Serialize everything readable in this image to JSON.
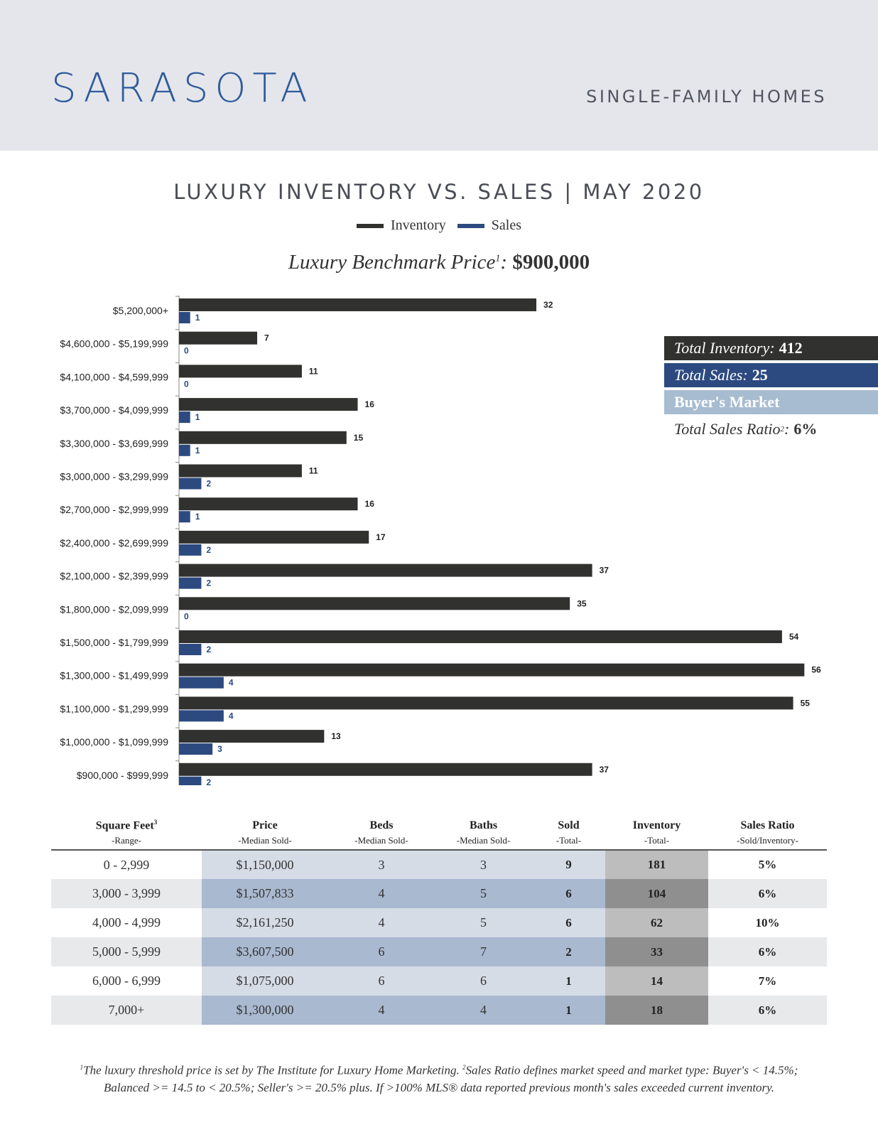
{
  "header": {
    "city": "SARASOTA",
    "property_type": "SINGLE-FAMILY HOMES"
  },
  "legend": {
    "inventory": "Inventory",
    "sales": "Sales"
  },
  "benchmark": {
    "label": "Luxury Benchmark Price",
    "sup": "1",
    "separator": ":",
    "value": "$900,000"
  },
  "summary": {
    "total_inventory_label": "Total Inventory:",
    "total_inventory_value": "412",
    "total_sales_label": "Total Sales:",
    "total_sales_value": "25",
    "market_type": "Buyer's Market",
    "ratio_label": "Total Sales Ratio",
    "ratio_sup": "2",
    "ratio_colon": ":",
    "ratio_value": "6%"
  },
  "colors": {
    "inventory": "#31312f",
    "sales": "#2c4a80",
    "market": "#a7bcd0"
  },
  "chart_data": {
    "type": "bar",
    "orientation": "horizontal",
    "title": "LUXURY INVENTORY VS. SALES | MAY 2020",
    "categories": [
      "$5,200,000+",
      "$4,600,000 - $5,199,999",
      "$4,100,000 - $4,599,999",
      "$3,700,000 - $4,099,999",
      "$3,300,000 - $3,699,999",
      "$3,000,000 - $3,299,999",
      "$2,700,000 - $2,999,999",
      "$2,400,000 - $2,699,999",
      "$2,100,000 - $2,399,999",
      "$1,800,000 - $2,099,999",
      "$1,500,000 - $1,799,999",
      "$1,300,000 - $1,499,999",
      "$1,100,000 - $1,299,999",
      "$1,000,000 - $1,099,999",
      "$900,000 - $999,999"
    ],
    "series": [
      {
        "name": "Inventory",
        "values": [
          32,
          7,
          11,
          16,
          15,
          11,
          16,
          17,
          37,
          35,
          54,
          56,
          55,
          13,
          37
        ]
      },
      {
        "name": "Sales",
        "values": [
          1,
          0,
          0,
          1,
          1,
          2,
          1,
          2,
          2,
          0,
          2,
          4,
          4,
          3,
          2
        ]
      }
    ],
    "xlim": [
      0,
      60
    ],
    "grid": false,
    "legend_position": "top-center"
  },
  "table": {
    "headers": [
      {
        "title": "Square Feet",
        "sup": "3",
        "sub": "-Range-"
      },
      {
        "title": "Price",
        "sup": "",
        "sub": "-Median Sold-"
      },
      {
        "title": "Beds",
        "sup": "",
        "sub": "-Median Sold-"
      },
      {
        "title": "Baths",
        "sup": "",
        "sub": "-Median Sold-"
      },
      {
        "title": "Sold",
        "sup": "",
        "sub": "-Total-"
      },
      {
        "title": "Inventory",
        "sup": "",
        "sub": "-Total-"
      },
      {
        "title": "Sales Ratio",
        "sup": "",
        "sub": "-Sold/Inventory-"
      }
    ],
    "rows": [
      [
        "0 - 2,999",
        "$1,150,000",
        "3",
        "3",
        "9",
        "181",
        "5%"
      ],
      [
        "3,000 - 3,999",
        "$1,507,833",
        "4",
        "5",
        "6",
        "104",
        "6%"
      ],
      [
        "4,000 - 4,999",
        "$2,161,250",
        "4",
        "5",
        "6",
        "62",
        "10%"
      ],
      [
        "5,000 - 5,999",
        "$3,607,500",
        "6",
        "7",
        "2",
        "33",
        "6%"
      ],
      [
        "6,000 - 6,999",
        "$1,075,000",
        "6",
        "6",
        "1",
        "14",
        "7%"
      ],
      [
        "7,000+",
        "$1,300,000",
        "4",
        "4",
        "1",
        "18",
        "6%"
      ]
    ]
  },
  "footnote": {
    "sup1": "1",
    "line1": "The luxury threshold price is set by The Institute for Luxury Home Marketing. ",
    "sup2": "2",
    "line1b": "Sales Ratio defines market speed and market type: Buyer's < 14.5%;",
    "line2": "Balanced >= 14.5 to < 20.5%; Seller's >= 20.5% plus. If >100% MLS® data reported previous month's sales exceeded current inventory."
  }
}
